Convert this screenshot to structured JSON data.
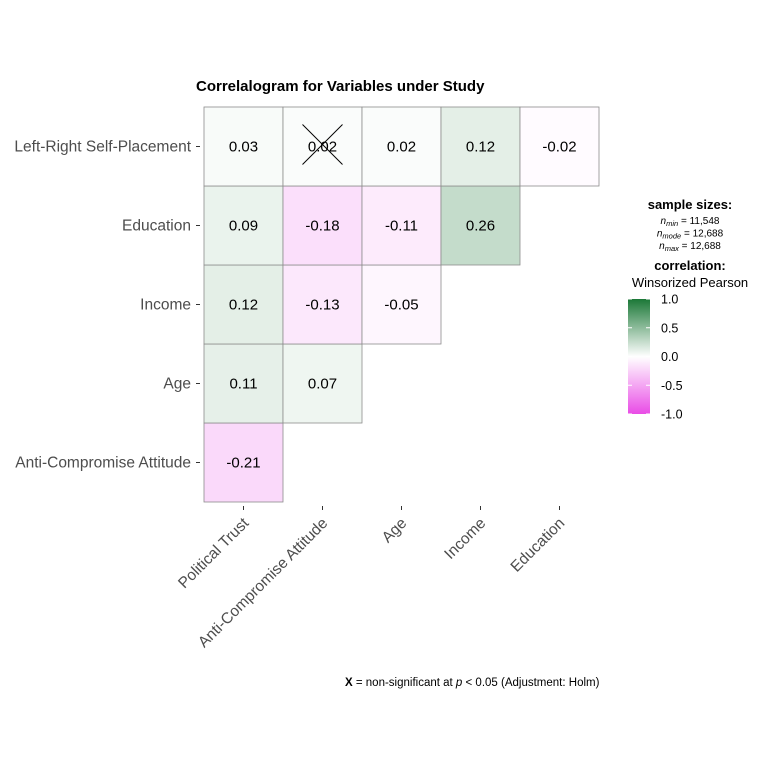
{
  "chart_data": {
    "type": "heatmap",
    "title": "Correlalogram for Variables under Study",
    "x_categories": [
      "Political Trust",
      "Anti-Compromise Attitude",
      "Age",
      "Income",
      "Education"
    ],
    "y_categories": [
      "Anti-Compromise Attitude",
      "Age",
      "Income",
      "Education",
      "Left-Right Self-Placement"
    ],
    "cells": [
      {
        "x": "Political Trust",
        "y": "Anti-Compromise Attitude",
        "value": -0.21,
        "label": "-0.21",
        "significant": true
      },
      {
        "x": "Political Trust",
        "y": "Age",
        "value": 0.11,
        "label": "0.11",
        "significant": true
      },
      {
        "x": "Anti-Compromise Attitude",
        "y": "Age",
        "value": 0.07,
        "label": "0.07",
        "significant": true
      },
      {
        "x": "Political Trust",
        "y": "Income",
        "value": 0.12,
        "label": "0.12",
        "significant": true
      },
      {
        "x": "Anti-Compromise Attitude",
        "y": "Income",
        "value": -0.13,
        "label": "-0.13",
        "significant": true
      },
      {
        "x": "Age",
        "y": "Income",
        "value": -0.05,
        "label": "-0.05",
        "significant": true
      },
      {
        "x": "Political Trust",
        "y": "Education",
        "value": 0.09,
        "label": "0.09",
        "significant": true
      },
      {
        "x": "Anti-Compromise Attitude",
        "y": "Education",
        "value": -0.18,
        "label": "-0.18",
        "significant": true
      },
      {
        "x": "Age",
        "y": "Education",
        "value": -0.11,
        "label": "-0.11",
        "significant": true
      },
      {
        "x": "Income",
        "y": "Education",
        "value": 0.26,
        "label": "0.26",
        "significant": true
      },
      {
        "x": "Political Trust",
        "y": "Left-Right Self-Placement",
        "value": 0.03,
        "label": "0.03",
        "significant": true
      },
      {
        "x": "Anti-Compromise Attitude",
        "y": "Left-Right Self-Placement",
        "value": 0.02,
        "label": "0.02",
        "significant": false
      },
      {
        "x": "Age",
        "y": "Left-Right Self-Placement",
        "value": 0.02,
        "label": "0.02",
        "significant": true
      },
      {
        "x": "Income",
        "y": "Left-Right Self-Placement",
        "value": 0.12,
        "label": "0.12",
        "significant": true
      },
      {
        "x": "Education",
        "y": "Left-Right Self-Placement",
        "value": -0.02,
        "label": "-0.02",
        "significant": true
      }
    ],
    "color_scale": {
      "low": "#e94ce6",
      "mid": "#ffffff",
      "high": "#1b7837",
      "limits": [
        -1.0,
        1.0
      ],
      "ticks": [
        "1.0",
        "0.5",
        "0.0",
        "-0.5",
        "-1.0"
      ]
    },
    "legend": {
      "placement": "right",
      "sample_sizes_title": "sample sizes:",
      "sample_sizes": [
        {
          "n": "n",
          "sub": "min",
          "value": "= 11,548"
        },
        {
          "n": "n",
          "sub": "mode",
          "value": "= 12,688"
        },
        {
          "n": "n",
          "sub": "max",
          "value": "= 12,688"
        }
      ],
      "correlation_title": "correlation:",
      "correlation_type": "Winsorized Pearson"
    },
    "caption": {
      "x_mark": "X",
      "prefix": " = non-significant at ",
      "p": "p",
      "suffix": " < 0.05 (Adjustment: Holm)"
    }
  }
}
